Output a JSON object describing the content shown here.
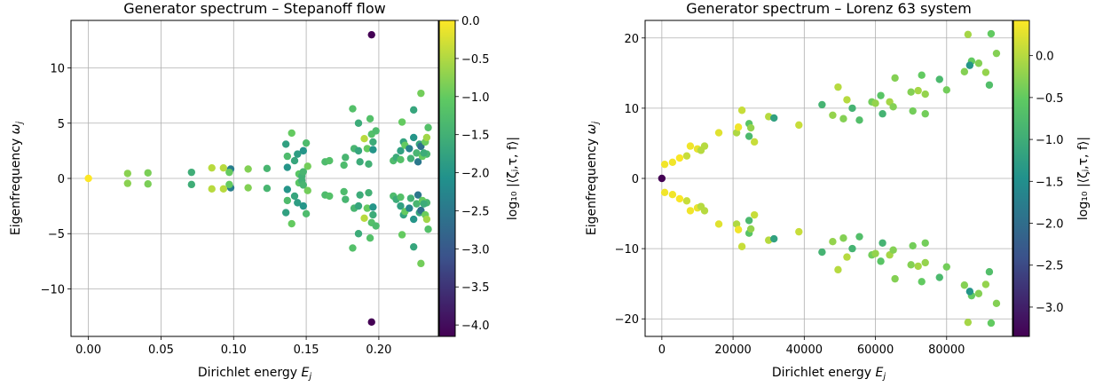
{
  "colormap": {
    "name": "viridis",
    "stops": [
      "#440154",
      "#3b528b",
      "#21918c",
      "#5ec962",
      "#fde725"
    ]
  },
  "chart_data": [
    {
      "type": "scatter",
      "title": "Generator spectrum – Stepanoff flow",
      "xlabel": "Dirichlet energy",
      "xlabel_sym": "E",
      "xlabel_sub": "j",
      "ylabel": "Eigenfrequency",
      "ylabel_sym": "ω",
      "ylabel_sub": "j",
      "colorbar_label": "log₁₀ |⟨ζⱼ,τ, f⟩|",
      "xlim": [
        -0.012,
        0.241
      ],
      "ylim": [
        -14.3,
        14.3
      ],
      "xticks": [
        0,
        0.05,
        0.1,
        0.15,
        0.2
      ],
      "xtick_labels": [
        "0.00",
        "0.05",
        "0.10",
        "0.15",
        "0.20"
      ],
      "yticks": [
        -10,
        -5,
        0,
        5,
        10
      ],
      "ytick_labels": [
        "−10",
        "−5",
        "0",
        "5",
        "10"
      ],
      "clim": [
        -4.15,
        0.0
      ],
      "cticks": [
        0,
        -0.5,
        -1,
        -1.5,
        -2,
        -2.5,
        -3,
        -3.5,
        -4
      ],
      "ctick_labels": [
        "0.0",
        "−0.5",
        "−1.0",
        "−1.5",
        "−2.0",
        "−2.5",
        "−3.0",
        "−3.5",
        "−4.0"
      ],
      "grid": true,
      "points": [
        [
          0,
          0,
          0.0
        ],
        [
          0.027,
          0.45,
          -0.75
        ],
        [
          0.041,
          0.5,
          -0.85
        ],
        [
          0.071,
          0.55,
          -1.55
        ],
        [
          0.085,
          0.95,
          -0.45
        ],
        [
          0.093,
          0.95,
          -0.45
        ],
        [
          0.098,
          0.85,
          -2.4
        ],
        [
          0.097,
          0.55,
          -1.0
        ],
        [
          0.11,
          0.85,
          -0.8
        ],
        [
          0.123,
          0.9,
          -1.4
        ],
        [
          0.136,
          3.1,
          -1.8
        ],
        [
          0.137,
          1.0,
          -2.0
        ],
        [
          0.137,
          2.0,
          -1.3
        ],
        [
          0.14,
          4.1,
          -1.0
        ],
        [
          0.142,
          1.6,
          -1.7
        ],
        [
          0.144,
          2.2,
          -1.85
        ],
        [
          0.145,
          0.4,
          -1.1
        ],
        [
          0.147,
          0.2,
          -1.5
        ],
        [
          0.148,
          2.5,
          -2.0
        ],
        [
          0.148,
          0.6,
          -1.4
        ],
        [
          0.15,
          3.2,
          -1.3
        ],
        [
          0.151,
          1.1,
          -0.9
        ],
        [
          0.163,
          1.5,
          -1.3
        ],
        [
          0.166,
          1.6,
          -1.2
        ],
        [
          0.176,
          1.2,
          -1.3
        ],
        [
          0.177,
          1.9,
          -1.4
        ],
        [
          0.182,
          6.3,
          -1.2
        ],
        [
          0.183,
          2.7,
          -1.4
        ],
        [
          0.186,
          5.0,
          -1.6
        ],
        [
          0.186,
          2.5,
          -1.7
        ],
        [
          0.187,
          1.5,
          -1.6
        ],
        [
          0.19,
          3.6,
          -0.45
        ],
        [
          0.192,
          2.7,
          -1.0
        ],
        [
          0.193,
          1.3,
          -1.5
        ],
        [
          0.194,
          5.4,
          -1.2
        ],
        [
          0.195,
          13.0,
          -4.15
        ],
        [
          0.196,
          3.3,
          -1.6
        ],
        [
          0.195,
          4.0,
          -1.2
        ],
        [
          0.196,
          2.6,
          -2.0
        ],
        [
          0.198,
          4.3,
          -1.3
        ],
        [
          0.21,
          1.6,
          -1.3
        ],
        [
          0.212,
          1.9,
          -1.6
        ],
        [
          0.215,
          2.5,
          -1.8
        ],
        [
          0.215,
          1.7,
          -1.2
        ],
        [
          0.216,
          5.1,
          -1.0
        ],
        [
          0.217,
          3.3,
          -1.75
        ],
        [
          0.218,
          3.0,
          -1.0
        ],
        [
          0.221,
          2.7,
          -2.3
        ],
        [
          0.222,
          1.8,
          -1.5
        ],
        [
          0.224,
          3.7,
          -2.0
        ],
        [
          0.224,
          6.2,
          -1.7
        ],
        [
          0.226,
          2.3,
          -1.4
        ],
        [
          0.227,
          1.5,
          -2.5
        ],
        [
          0.229,
          7.7,
          -0.9
        ],
        [
          0.228,
          3.1,
          -1.7
        ],
        [
          0.229,
          2.9,
          -2.6
        ],
        [
          0.232,
          3.3,
          -0.95
        ],
        [
          0.233,
          3.7,
          -0.6
        ],
        [
          0.233,
          2.2,
          -1.4
        ],
        [
          0.234,
          4.6,
          -1.2
        ],
        [
          0.23,
          2.0,
          -1.0
        ],
        [
          0.231,
          2.3,
          -1.6
        ]
      ]
    },
    {
      "type": "scatter",
      "title": "Generator spectrum – Lorenz 63 system",
      "xlabel": "Dirichlet energy",
      "xlabel_sym": "E",
      "xlabel_sub": "j",
      "ylabel": "Eigenfrequency",
      "ylabel_sym": "ω",
      "ylabel_sub": "j",
      "colorbar_label": "log₁₀ |⟨ζⱼ,τ, f⟩|",
      "xlim": [
        -4700,
        98500
      ],
      "ylim": [
        -22.5,
        22.5
      ],
      "xticks": [
        0,
        20000,
        40000,
        60000,
        80000
      ],
      "xtick_labels": [
        "0",
        "20000",
        "40000",
        "60000",
        "80000"
      ],
      "yticks": [
        -20,
        -10,
        0,
        10,
        20
      ],
      "ytick_labels": [
        "−20",
        "−10",
        "0",
        "10",
        "20"
      ],
      "clim": [
        -3.35,
        0.42
      ],
      "cticks": [
        0,
        -0.5,
        -1,
        -1.5,
        -2,
        -2.5,
        -3
      ],
      "ctick_labels": [
        "0.0",
        "−0.5",
        "−1.0",
        "−1.5",
        "−2.0",
        "−2.5",
        "−3.0"
      ],
      "grid": true,
      "points": [
        [
          0,
          0,
          -3.35
        ],
        [
          800,
          2.0,
          0.35
        ],
        [
          3000,
          2.3,
          0.35
        ],
        [
          5000,
          2.9,
          0.4
        ],
        [
          7000,
          3.2,
          0.1
        ],
        [
          8000,
          4.6,
          0.35
        ],
        [
          10000,
          4.2,
          0.3
        ],
        [
          11000,
          4.0,
          0.0
        ],
        [
          12000,
          4.6,
          0.0
        ],
        [
          16000,
          6.5,
          0.25
        ],
        [
          21000,
          6.5,
          -0.05
        ],
        [
          21500,
          7.3,
          0.35
        ],
        [
          22500,
          9.7,
          0.1
        ],
        [
          24500,
          7.8,
          -0.6
        ],
        [
          24500,
          6.0,
          -0.8
        ],
        [
          25000,
          7.2,
          -0.2
        ],
        [
          26000,
          5.2,
          0.1
        ],
        [
          30000,
          8.8,
          0.0
        ],
        [
          31500,
          8.6,
          -1.2
        ],
        [
          38500,
          7.6,
          0.1
        ],
        [
          45000,
          10.5,
          -0.9
        ],
        [
          48000,
          9.0,
          -0.2
        ],
        [
          49500,
          13.0,
          0.0
        ],
        [
          51000,
          8.5,
          -0.3
        ],
        [
          52000,
          11.2,
          0.0
        ],
        [
          53500,
          10.0,
          -0.9
        ],
        [
          55500,
          8.3,
          -0.7
        ],
        [
          59000,
          10.9,
          -0.4
        ],
        [
          60000,
          10.7,
          -0.2
        ],
        [
          61500,
          11.8,
          -0.6
        ],
        [
          62000,
          9.2,
          -0.9
        ],
        [
          64000,
          10.9,
          -0.1
        ],
        [
          65000,
          10.2,
          -0.3
        ],
        [
          65500,
          14.3,
          -0.3
        ],
        [
          70000,
          12.3,
          -0.3
        ],
        [
          70500,
          9.6,
          -0.4
        ],
        [
          72000,
          12.5,
          -0.1
        ],
        [
          73000,
          14.7,
          -0.5
        ],
        [
          74000,
          12.0,
          -0.2
        ],
        [
          74000,
          9.2,
          -0.4
        ],
        [
          78000,
          14.1,
          -0.8
        ],
        [
          80000,
          12.6,
          -0.4
        ],
        [
          85000,
          15.2,
          -0.3
        ],
        [
          86000,
          20.5,
          -0.1
        ],
        [
          87000,
          16.7,
          -0.5
        ],
        [
          89000,
          16.4,
          -0.3
        ],
        [
          91000,
          15.1,
          -0.2
        ],
        [
          92000,
          13.3,
          -0.7
        ],
        [
          92500,
          20.6,
          -0.5
        ],
        [
          94000,
          17.8,
          -0.3
        ],
        [
          86500,
          16.1,
          -1.4
        ]
      ]
    }
  ]
}
